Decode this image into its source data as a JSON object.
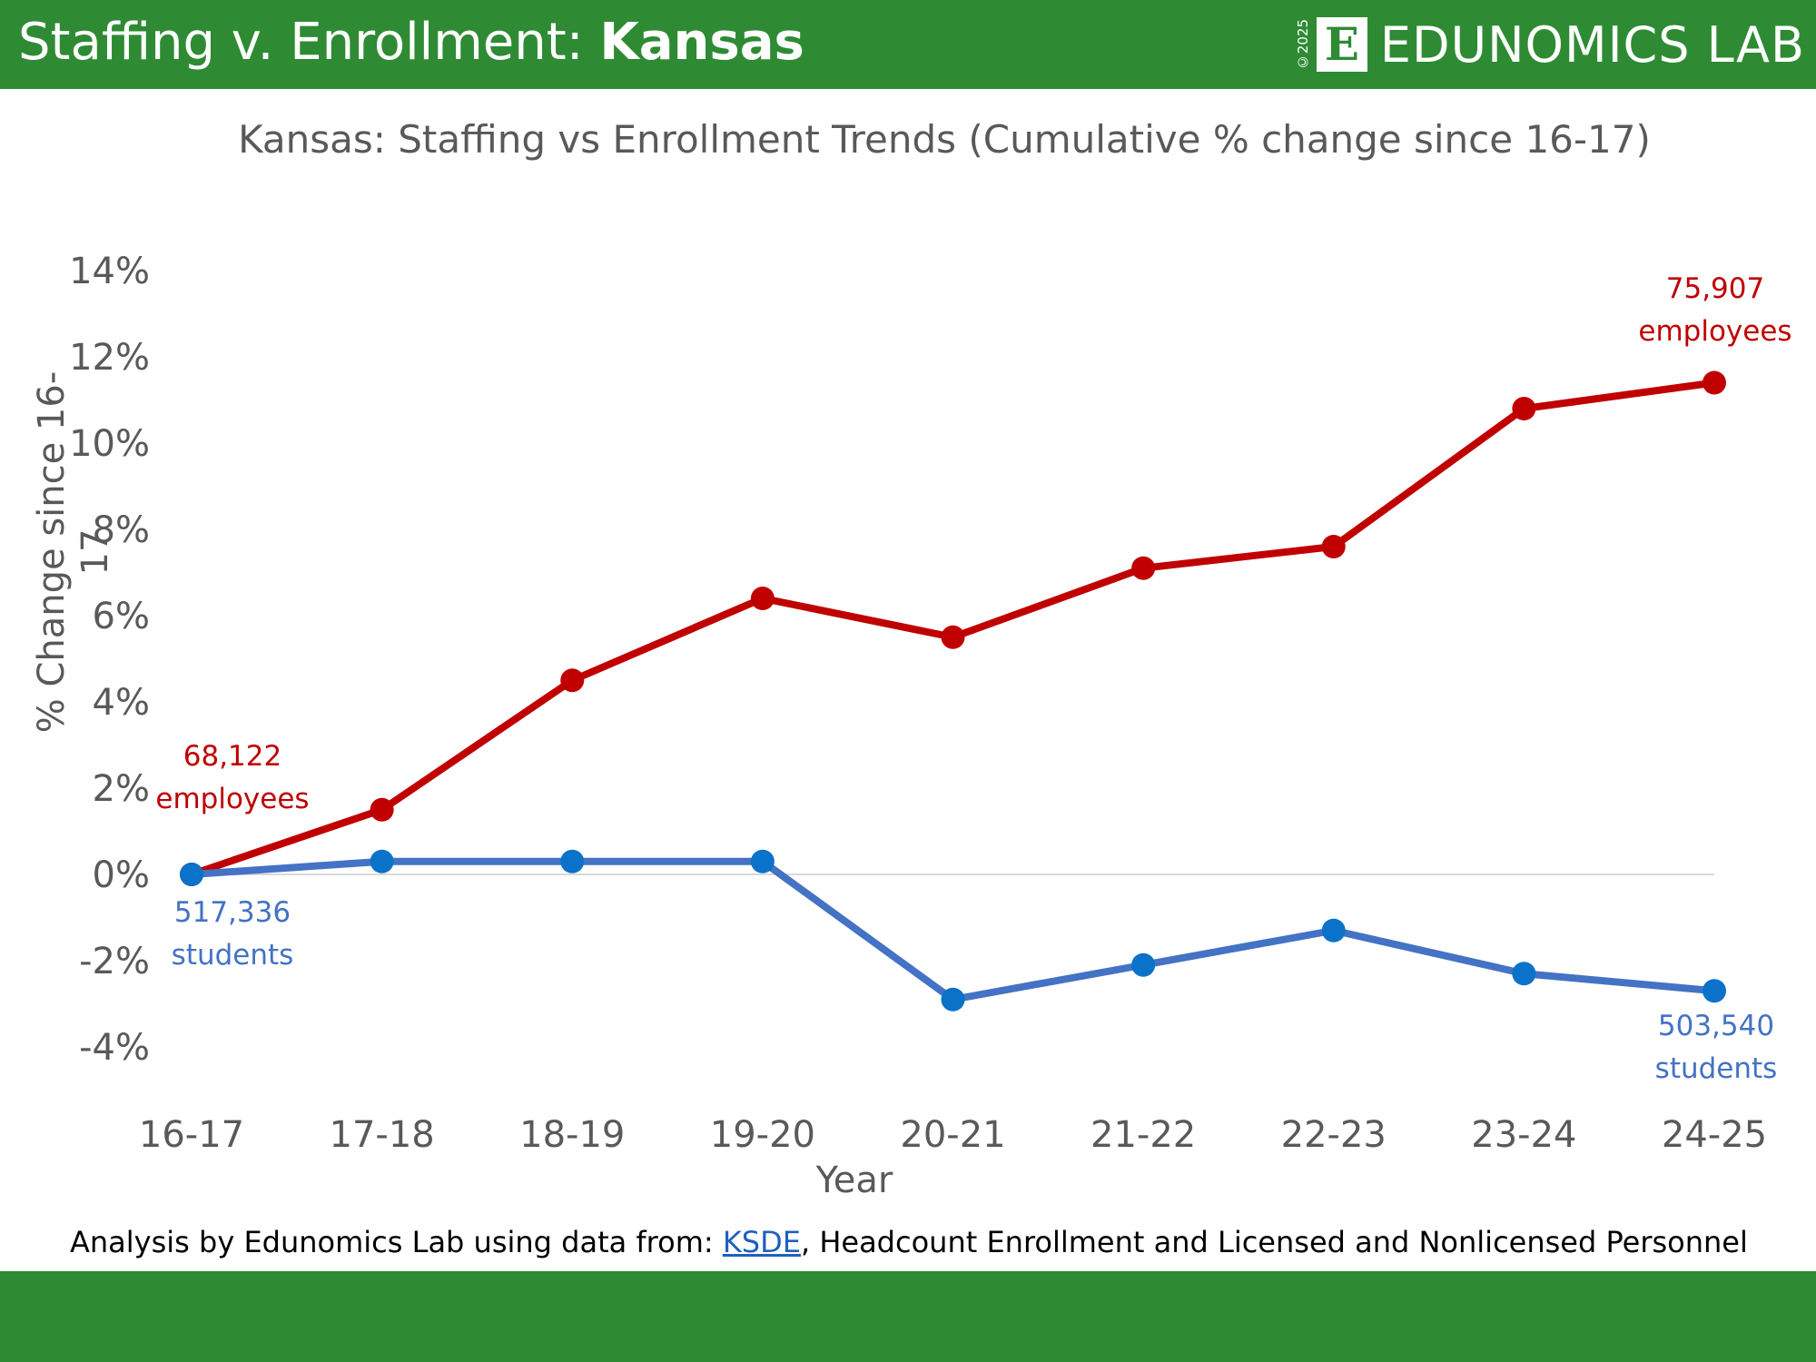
{
  "header": {
    "title_prefix": "Staffing v. Enrollment: ",
    "title_state": "Kansas",
    "logo_year": "©2025",
    "logo_letter": "E",
    "logo_text": "EDUNOMICS LAB"
  },
  "footnote": {
    "prefix": "Analysis by Edunomics Lab using data from: ",
    "link": "KSDE",
    "suffix": ", Headcount Enrollment and Licensed and Nonlicensed Personnel"
  },
  "colors": {
    "brand_green": "#2e8b33",
    "staff_red": "#c00000",
    "students_blue": "#4472c4",
    "students_marker": "#0b72c9"
  },
  "chart_data": {
    "type": "line",
    "title": "Kansas: Staffing vs Enrollment Trends (Cumulative % change since 16-17)",
    "xlabel": "Year",
    "ylabel": "% Change since 16-17",
    "categories": [
      "16-17",
      "17-18",
      "18-19",
      "19-20",
      "20-21",
      "21-22",
      "22-23",
      "23-24",
      "24-25"
    ],
    "ylim": [
      -4,
      14
    ],
    "yticks": [
      "14%",
      "12%",
      "10%",
      "8%",
      "6%",
      "4%",
      "2%",
      "0%",
      "-2%",
      "-4%"
    ],
    "grid": "zero line only",
    "legend": "none",
    "series": [
      {
        "values": [
          0,
          1.5,
          4.5,
          6.4,
          5.5,
          7.1,
          7.6,
          10.8,
          11.4
        ]
      },
      {
        "values": [
          0,
          0.3,
          0.3,
          0.3,
          -2.9,
          -2.1,
          -1.3,
          -2.3,
          -2.7
        ]
      }
    ],
    "annotations": {
      "staff_start": [
        "68,122",
        "employees"
      ],
      "staff_end": [
        "75,907",
        "employees"
      ],
      "students_start": [
        "517,336",
        "students"
      ],
      "students_end": [
        "503,540",
        "students"
      ]
    }
  }
}
